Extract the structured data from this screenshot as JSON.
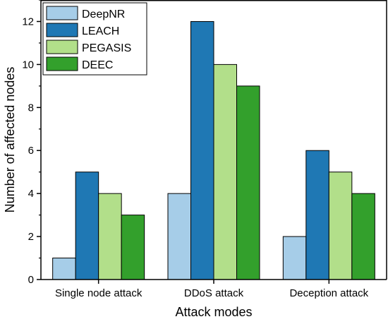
{
  "chart_data": {
    "type": "bar",
    "xlabel": "Attack modes",
    "ylabel": "Number of affected nodes",
    "ylim": [
      0,
      13
    ],
    "yticks": [
      0,
      2,
      4,
      6,
      8,
      10,
      12
    ],
    "categories": [
      "Single node attack",
      "DDoS attack",
      "Deception attack"
    ],
    "series": [
      {
        "name": "DeepNR",
        "values": [
          1,
          4,
          2
        ],
        "color": "#a6cde8"
      },
      {
        "name": "LEACH",
        "values": [
          5,
          12,
          6
        ],
        "color": "#1f78b4"
      },
      {
        "name": "PEGASIS",
        "values": [
          4,
          10,
          5
        ],
        "color": "#b2df8a"
      },
      {
        "name": "DEEC",
        "values": [
          3,
          9,
          4
        ],
        "color": "#33a02c"
      }
    ],
    "legend_position": "top-left",
    "grid": false
  }
}
